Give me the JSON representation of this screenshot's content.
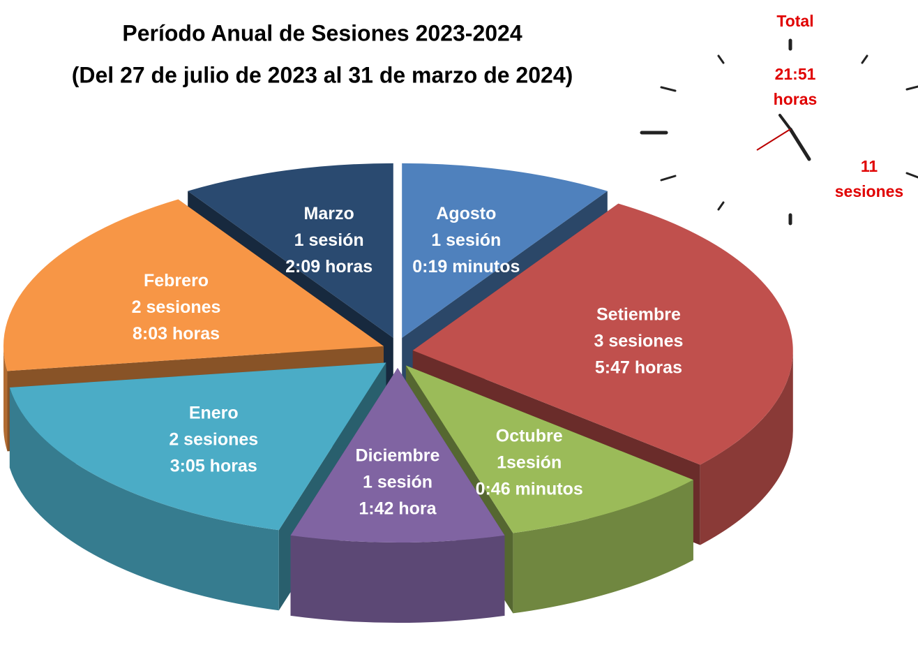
{
  "chart_data": {
    "type": "pie3d",
    "title": "Período Anual de Sesiones 2023-2024",
    "subtitle": "(Del 27 de julio de 2023 al 31 de marzo de 2024)",
    "categories": [
      "Agosto",
      "Setiembre",
      "Octubre",
      "Diciembre",
      "Enero",
      "Febrero",
      "Marzo"
    ],
    "values": [
      1,
      3,
      1,
      1,
      2,
      2,
      1
    ],
    "value_labels": [
      "1 sesión",
      "3 sesiones",
      "1sesión",
      "1 sesión",
      "2 sesiones",
      "2 sesiones",
      "1 sesión"
    ],
    "durations": [
      "0:19 minutos",
      "5:47 horas",
      "0:46 minutos",
      "1:42 hora",
      "3:05 horas",
      "8:03 horas",
      "2:09 horas"
    ],
    "colors": [
      "#4f81bd",
      "#c0504d",
      "#9bbb59",
      "#8064a2",
      "#4bacc6",
      "#f79646",
      "#2a4a70"
    ]
  },
  "total": {
    "label": "Total",
    "hours": "21:51",
    "hours_unit": "horas",
    "sessions": 11,
    "sessions_unit": "sesiones"
  }
}
